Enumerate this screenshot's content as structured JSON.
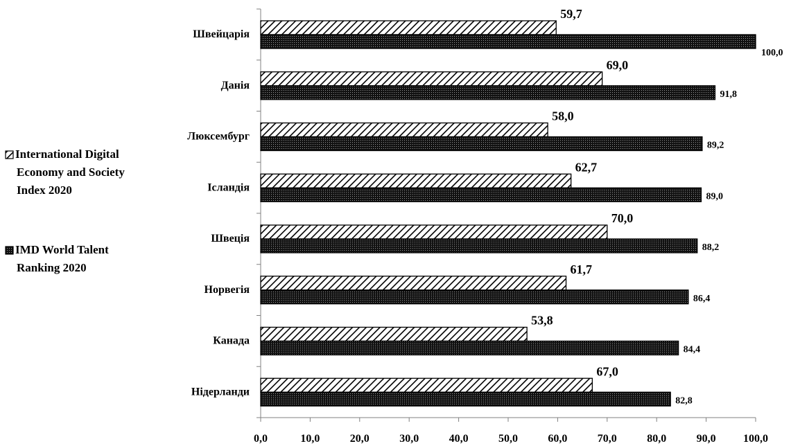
{
  "chart_data": {
    "type": "bar",
    "orientation": "horizontal",
    "categories": [
      "Швейцарія",
      "Данія",
      "Люксембург",
      "Ісландія",
      "Швеція",
      "Норвегія",
      "Канада",
      "Нідерланди"
    ],
    "series": [
      {
        "name": "International Digital Economy and Society Index 2020",
        "pattern": "diagonal-hatch",
        "values": [
          59.7,
          69.0,
          58.0,
          62.7,
          70.0,
          61.7,
          53.8,
          67.0
        ],
        "labels": [
          "59,7",
          "69,0",
          "58,0",
          "62,7",
          "70,0",
          "61,7",
          "53,8",
          "67,0"
        ]
      },
      {
        "name": "IMD World Talent Ranking 2020",
        "pattern": "dark-dotted",
        "values": [
          100.0,
          91.8,
          89.2,
          89.0,
          88.2,
          86.4,
          84.4,
          82.8
        ],
        "labels": [
          "100,0",
          "91,8",
          "89,2",
          "89,0",
          "88,2",
          "86,4",
          "84,4",
          "82,8"
        ]
      }
    ],
    "xlim": [
      0,
      100
    ],
    "x_ticks": [
      "0,0",
      "10,0",
      "20,0",
      "30,0",
      "40,0",
      "50,0",
      "60,0",
      "70,0",
      "80,0",
      "90,0",
      "100,0"
    ],
    "legend": {
      "position": "left",
      "items": [
        [
          "International Digital",
          "Economy and Society",
          "Index 2020"
        ],
        [
          "IMD World Talent",
          "Ranking 2020"
        ]
      ]
    },
    "grid": false
  }
}
